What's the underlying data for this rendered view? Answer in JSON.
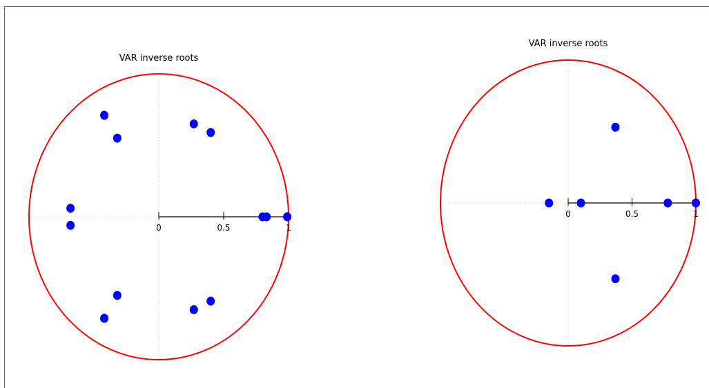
{
  "chart_data": [
    {
      "type": "scatter",
      "title": "VAR inverse roots",
      "unit_circle_color": "#ff0000",
      "point_color": "#0000ff",
      "x_ticks": [
        0,
        0.5,
        1
      ],
      "x_tick_labels": [
        "0",
        "0.5",
        "1"
      ],
      "points": [
        {
          "x": 0.99,
          "y": 0.0
        },
        {
          "x": 0.83,
          "y": 0.0
        },
        {
          "x": 0.8,
          "y": 0.0
        },
        {
          "x": 0.27,
          "y": 0.65
        },
        {
          "x": 0.27,
          "y": -0.65
        },
        {
          "x": 0.4,
          "y": 0.59
        },
        {
          "x": 0.4,
          "y": -0.59
        },
        {
          "x": -0.42,
          "y": 0.71
        },
        {
          "x": -0.42,
          "y": -0.71
        },
        {
          "x": -0.32,
          "y": 0.55
        },
        {
          "x": -0.32,
          "y": -0.55
        },
        {
          "x": -0.68,
          "y": 0.06
        },
        {
          "x": -0.68,
          "y": -0.06
        }
      ]
    },
    {
      "type": "scatter",
      "title": "VAR inverse roots",
      "unit_circle_color": "#ff0000",
      "point_color": "#0000ff",
      "x_ticks": [
        0,
        0.5,
        1
      ],
      "x_tick_labels": [
        "0",
        "0.5",
        "1"
      ],
      "points": [
        {
          "x": 1.0,
          "y": 0.0
        },
        {
          "x": 0.78,
          "y": 0.0
        },
        {
          "x": 0.1,
          "y": 0.0
        },
        {
          "x": -0.15,
          "y": 0.0
        },
        {
          "x": 0.37,
          "y": 0.53
        },
        {
          "x": 0.37,
          "y": -0.53
        }
      ]
    }
  ]
}
